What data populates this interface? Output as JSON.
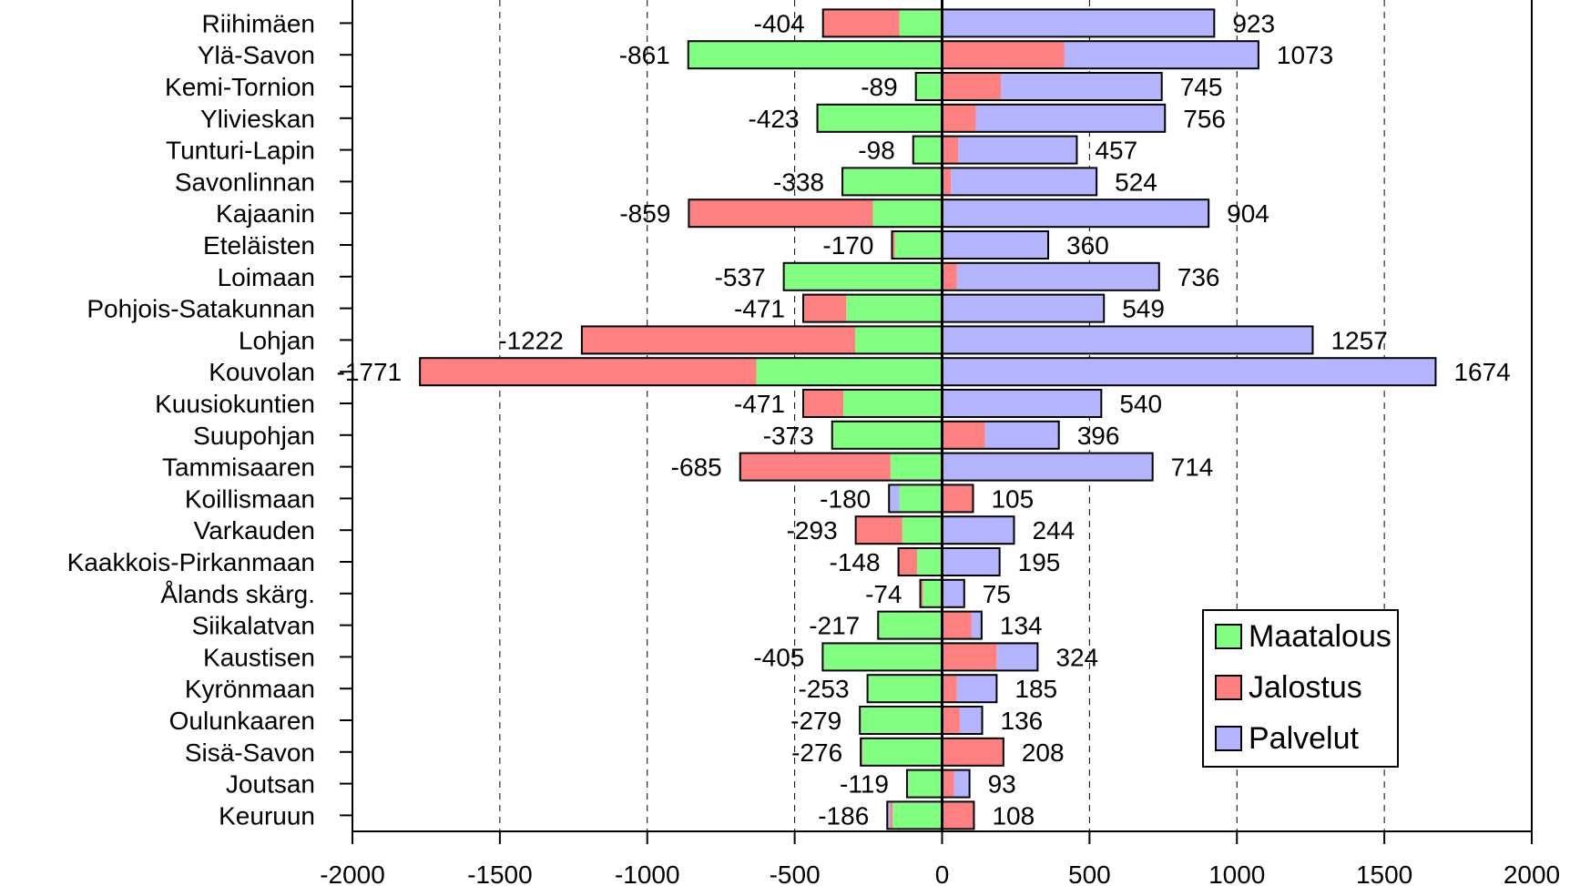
{
  "chart_data": {
    "type": "bar",
    "orientation": "horizontal",
    "stacked": "diverging",
    "xlim": [
      -2000,
      2000
    ],
    "x_ticks": [
      -2000,
      -1500,
      -1000,
      -500,
      0,
      500,
      1000,
      1500,
      2000
    ],
    "grid": "vertical-dashed",
    "legend_position": "bottom-right",
    "categories": [
      "Riihimäen",
      "Ylä-Savon",
      "Kemi-Tornion",
      "Ylivieskan",
      "Tunturi-Lapin",
      "Savonlinnan",
      "Kajaanin",
      "Eteläisten",
      "Loimaan",
      "Pohjois-Satakunnan",
      "Lohjan",
      "Kouvolan",
      "Kuusiokuntien",
      "Suupohjan",
      "Tammisaaren",
      "Koillismaan",
      "Varkauden",
      "Kaakkois-Pirkanmaan",
      "Ålands skärg.",
      "Siikalatvan",
      "Kaustisen",
      "Kyrönmaan",
      "Oulunkaaren",
      "Sisä-Savon",
      "Joutsan",
      "Keuruun"
    ],
    "neg_totals": [
      -404,
      -861,
      -89,
      -423,
      -98,
      -338,
      -859,
      -170,
      -537,
      -471,
      -1222,
      -1771,
      -471,
      -373,
      -685,
      -180,
      -293,
      -148,
      -74,
      -217,
      -405,
      -253,
      -279,
      -276,
      -119,
      -186
    ],
    "pos_totals": [
      923,
      1073,
      745,
      756,
      457,
      524,
      904,
      360,
      736,
      549,
      1257,
      1674,
      540,
      396,
      714,
      105,
      244,
      195,
      75,
      134,
      324,
      185,
      136,
      208,
      93,
      108
    ],
    "series": [
      {
        "name": "Maatalous",
        "color": "#80ff80",
        "neg": [
          -145,
          -861,
          -89,
          -423,
          -98,
          -338,
          -235,
          -160,
          -537,
          -325,
          -295,
          -630,
          -335,
          -373,
          -175,
          -145,
          -135,
          -85,
          -65,
          -217,
          -405,
          -253,
          -279,
          -270,
          -119,
          -168
        ],
        "pos": [
          0,
          0,
          0,
          0,
          0,
          0,
          0,
          0,
          0,
          0,
          0,
          0,
          0,
          0,
          0,
          0,
          0,
          0,
          0,
          0,
          0,
          0,
          0,
          0,
          0,
          0
        ]
      },
      {
        "name": "Jalostus",
        "color": "#ff8080",
        "neg": [
          -259,
          0,
          0,
          0,
          0,
          0,
          -624,
          -10,
          0,
          -146,
          -927,
          -1141,
          -136,
          0,
          -510,
          0,
          -158,
          -63,
          -9,
          0,
          0,
          0,
          0,
          -6,
          0,
          -8
        ],
        "pos": [
          0,
          415,
          200,
          115,
          55,
          30,
          0,
          0,
          50,
          0,
          0,
          0,
          0,
          145,
          0,
          105,
          0,
          0,
          0,
          100,
          185,
          50,
          60,
          208,
          40,
          108
        ]
      },
      {
        "name": "Palvelut",
        "color": "#b4b4ff",
        "neg": [
          0,
          0,
          0,
          0,
          0,
          0,
          0,
          0,
          0,
          0,
          0,
          0,
          0,
          0,
          0,
          -35,
          0,
          0,
          0,
          0,
          0,
          0,
          0,
          0,
          0,
          -10
        ],
        "pos": [
          923,
          658,
          545,
          641,
          402,
          494,
          904,
          360,
          686,
          549,
          1257,
          1674,
          540,
          251,
          714,
          0,
          244,
          195,
          75,
          34,
          139,
          135,
          76,
          0,
          53,
          0
        ]
      }
    ]
  }
}
